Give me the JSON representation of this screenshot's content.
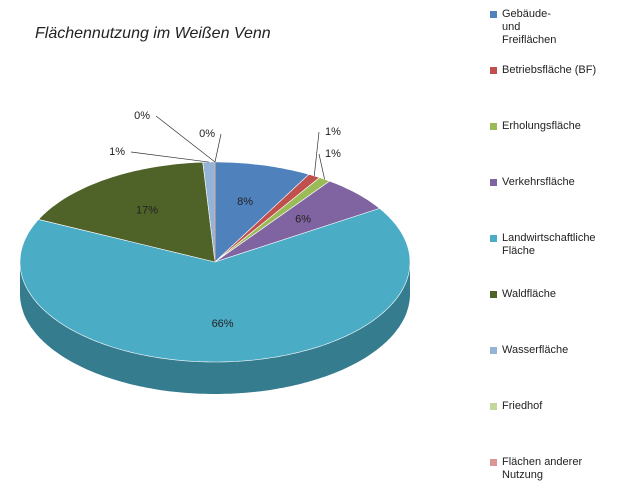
{
  "chart_data": {
    "type": "pie",
    "title": "Flächennutzung im Weißen Venn",
    "categories": [
      "Gebäude- und Freiflächen",
      "Betriebsfläche (BF)",
      "Erholungsfläche",
      "Verkehrsfläche",
      "Landwirtschaftliche Fläche",
      "Waldfläche",
      "Wasserfläche",
      "Friedhof",
      "Flächen anderer Nutzung"
    ],
    "values": [
      8,
      1,
      1,
      6,
      66,
      17,
      1,
      0,
      0
    ],
    "value_labels": [
      "8%",
      "1%",
      "1%",
      "6%",
      "66%",
      "17%",
      "1%",
      "0%",
      "0%"
    ],
    "colors": [
      "#4f81bd",
      "#c0504d",
      "#9bbb59",
      "#8064a2",
      "#4bacc6",
      "#4f6228",
      "#95b3d7",
      "#c3d69b",
      "#d99694"
    ],
    "legend": "right"
  }
}
